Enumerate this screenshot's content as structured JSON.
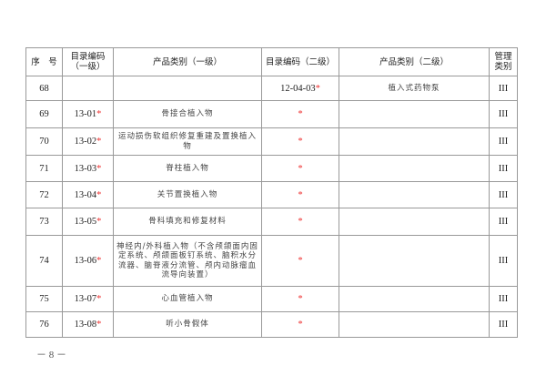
{
  "table": {
    "headers": [
      "序　号",
      "目录编码（一级）",
      "产品类别（一级）",
      "目录编码（二级）",
      "产品类别（二级）",
      "管理类别"
    ],
    "rows": [
      {
        "no": "68",
        "code1": "",
        "cat1": "",
        "code2": "12-04-03",
        "code2_star": "*",
        "cat2": "植入式药物泵",
        "class": "III"
      },
      {
        "no": "69",
        "code1": "13-01",
        "code1_star": "*",
        "cat1": "骨接合植入物",
        "code2": "",
        "code2_star": "*",
        "cat2": "",
        "class": "III"
      },
      {
        "no": "70",
        "code1": "13-02",
        "code1_star": "*",
        "cat1": "运动损伤软组织修复重建及置换植入物",
        "code2": "",
        "code2_star": "*",
        "cat2": "",
        "class": "III"
      },
      {
        "no": "71",
        "code1": "13-03",
        "code1_star": "*",
        "cat1": "脊柱植入物",
        "code2": "",
        "code2_star": "*",
        "cat2": "",
        "class": "III"
      },
      {
        "no": "72",
        "code1": "13-04",
        "code1_star": "*",
        "cat1": "关节置换植入物",
        "code2": "",
        "code2_star": "*",
        "cat2": "",
        "class": "III"
      },
      {
        "no": "73",
        "code1": "13-05",
        "code1_star": "*",
        "cat1": "骨科填充和修复材料",
        "code2": "",
        "code2_star": "*",
        "cat2": "",
        "class": "III"
      },
      {
        "no": "74",
        "code1": "13-06",
        "code1_star": "*",
        "cat1": "神经内/外科植入物（不含颅颌面内固定系统、颅颌面板钉系统、脑积水分流器、脑脊液分流管、颅内动脉瘤血流导向装置）",
        "code2": "",
        "code2_star": "*",
        "cat2": "",
        "class": "III"
      },
      {
        "no": "75",
        "code1": "13-07",
        "code1_star": "*",
        "cat1": "心血管植入物",
        "code2": "",
        "code2_star": "*",
        "cat2": "",
        "class": "III"
      },
      {
        "no": "76",
        "code1": "13-08",
        "code1_star": "*",
        "cat1": "听小骨假体",
        "code2": "",
        "code2_star": "*",
        "cat2": "",
        "class": "III"
      }
    ]
  },
  "page_number": "－ 8 －"
}
